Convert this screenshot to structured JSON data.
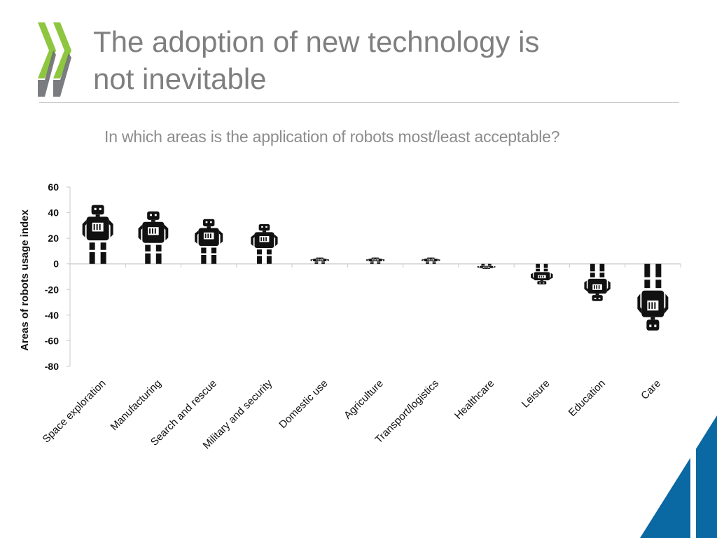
{
  "slide": {
    "title_lines": [
      "The adoption of new technology is",
      "not inevitable"
    ],
    "question": "In which areas is the application of robots most/least acceptable?"
  },
  "colors": {
    "title": "#7f7f7f",
    "logo_green": "#8dc63f",
    "logo_gray": "#6d6e71",
    "robot": "#111111",
    "corner_blue": "#0a68a3",
    "axis": "#c8c8c8"
  },
  "chart_data": {
    "type": "bar",
    "ylabel": "Areas of robots usage index",
    "xlabel": "",
    "ylim": [
      -80,
      60
    ],
    "yticks": [
      60,
      40,
      20,
      0,
      -20,
      -40,
      -60,
      -80
    ],
    "ytick_labels": [
      "60",
      "40",
      "20",
      "0",
      "-20",
      "-40",
      "-60",
      "-80"
    ],
    "categories": [
      "Space exploration",
      "Manufacturing",
      "Search and rescue",
      "Military and security",
      "Domestic use",
      "Agriculture",
      "Transport/logistics",
      "Healthcare",
      "Leisure",
      "Education",
      "Care"
    ],
    "values": [
      46,
      41,
      35,
      31,
      5,
      5,
      5,
      -4,
      -16,
      -29,
      -52
    ],
    "marker": "robot-icon"
  }
}
